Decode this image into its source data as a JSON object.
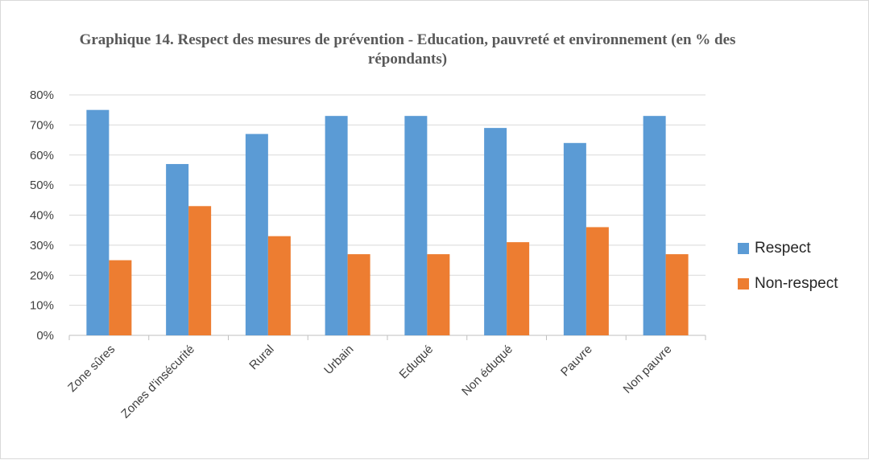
{
  "chart_data": {
    "type": "bar",
    "title": "Graphique 14. Respect des mesures de prévention  - Education, pauvreté et environnement (en % des répondants)",
    "categories": [
      "Zone sûres",
      "Zones d'insécurité",
      "Rural",
      "Urbain",
      "Eduqué",
      "Non éduqué",
      "Pauvre",
      "Non pauvre"
    ],
    "series": [
      {
        "name": "Respect",
        "color": "#5b9bd5",
        "values": [
          75,
          57,
          67,
          73,
          73,
          69,
          64,
          73
        ]
      },
      {
        "name": "Non-respect",
        "color": "#ed7d31",
        "values": [
          25,
          43,
          33,
          27,
          27,
          31,
          36,
          27
        ]
      }
    ],
    "ylim": [
      0,
      80
    ],
    "yticks": [
      "0%",
      "10%",
      "20%",
      "30%",
      "40%",
      "50%",
      "60%",
      "70%",
      "80%"
    ],
    "grid": true,
    "legend_position": "right"
  }
}
